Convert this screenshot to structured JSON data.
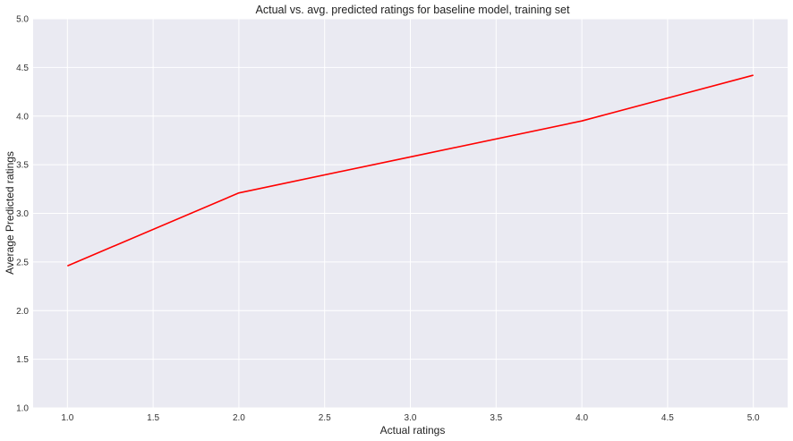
{
  "chart_data": {
    "type": "line",
    "title": "Actual vs. avg. predicted ratings for baseline model, training set",
    "xlabel": "Actual ratings",
    "ylabel": "Average Predicted ratings",
    "xlim": [
      0.8,
      5.2
    ],
    "ylim": [
      1.0,
      5.0
    ],
    "xticks": [
      "1.0",
      "1.5",
      "2.0",
      "2.5",
      "3.0",
      "3.5",
      "4.0",
      "4.5",
      "5.0"
    ],
    "yticks": [
      "1.0",
      "1.5",
      "2.0",
      "2.5",
      "3.0",
      "3.5",
      "4.0",
      "4.5",
      "5.0"
    ],
    "grid": true,
    "series": [
      {
        "color": "#ff0000",
        "x": [
          1.0,
          2.0,
          3.0,
          4.0,
          5.0
        ],
        "y": [
          2.46,
          3.21,
          3.58,
          3.95,
          4.42
        ]
      }
    ]
  },
  "colors": {
    "plot_background": "#eaeaf2",
    "grid": "#ffffff",
    "line": "#ff0000"
  }
}
